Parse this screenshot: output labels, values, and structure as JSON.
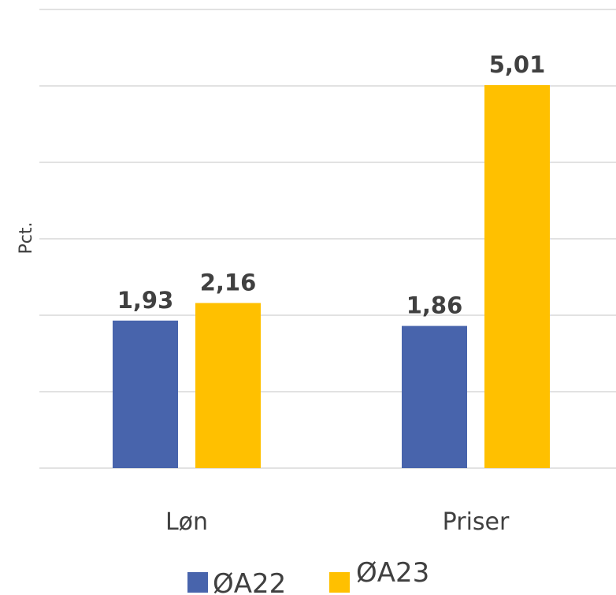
{
  "chart_data": {
    "type": "bar",
    "title": "",
    "xlabel": "",
    "ylabel": "Pct.",
    "categories": [
      "Løn",
      "Priser"
    ],
    "series": [
      {
        "name": "ØA22",
        "values": [
          1.93,
          1.86
        ],
        "labels": [
          "1,93",
          "1,86"
        ],
        "color": "#4864AC"
      },
      {
        "name": "ØA23",
        "values": [
          2.16,
          5.01
        ],
        "labels": [
          "2,16",
          "5,01"
        ],
        "color": "#FFC000"
      }
    ],
    "ylim": [
      0,
      6
    ],
    "gridlines": [
      0,
      1,
      2,
      3,
      4,
      5,
      6
    ],
    "grid": true,
    "legend_position": "bottom",
    "gridline_color": "#D9D9D9"
  }
}
